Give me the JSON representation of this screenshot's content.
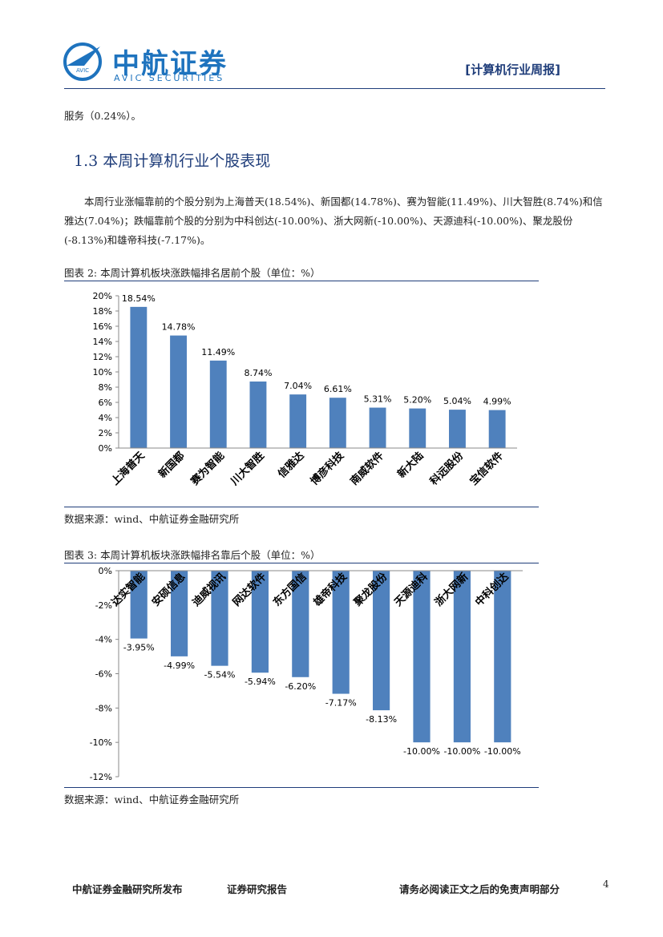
{
  "header": {
    "logo_badge": "AVIC",
    "brand": "中航证券",
    "brand_en": "AVIC SECURITIES",
    "report_type": "[计算机行业周报]"
  },
  "body": {
    "carry_over": "服务（0.24%）。",
    "section_title": "1.3 本周计算机行业个股表现",
    "paragraph": "本周行业涨幅靠前的个股分别为上海普天(18.54%)、新国都(14.78%)、赛为智能(11.49%)、川大智胜(8.74%)和信雅达(7.04%)；跌幅靠前个股的分别为中科创达(-10.00%)、浙大网新(-10.00%)、天源迪科(-10.00%)、聚龙股份(-8.13%)和雄帝科技(-7.17%)。"
  },
  "figures": [
    {
      "caption": "图表 2: 本周计算机板块涨跌幅排名居前个股（单位：%）",
      "source": "数据来源：wind、中航证券金融研究所"
    },
    {
      "caption": "图表 3: 本周计算机板块涨跌幅排名靠后个股（单位：%）",
      "source": "数据来源：wind、中航证券金融研究所"
    }
  ],
  "chart_data": [
    {
      "type": "bar",
      "color": "#4f81bd",
      "label_position": "bottom",
      "categories": [
        "上海普天",
        "新国都",
        "赛为智能",
        "川大智胜",
        "信雅达",
        "博彦科技",
        "南威软件",
        "新大陆",
        "科远股份",
        "宝信软件"
      ],
      "values": [
        18.54,
        14.78,
        11.49,
        8.74,
        7.04,
        6.61,
        5.31,
        5.2,
        5.04,
        4.99
      ],
      "value_labels": [
        "18.54%",
        "14.78%",
        "11.49%",
        "8.74%",
        "7.04%",
        "6.61%",
        "5.31%",
        "5.20%",
        "5.04%",
        "4.99%"
      ],
      "ylim": [
        0,
        20
      ],
      "yticks": [
        {
          "value": 0,
          "label": "0%"
        },
        {
          "value": 2,
          "label": "2%"
        },
        {
          "value": 4,
          "label": "4%"
        },
        {
          "value": 6,
          "label": "6%"
        },
        {
          "value": 8,
          "label": "8%"
        },
        {
          "value": 10,
          "label": "10%"
        },
        {
          "value": 12,
          "label": "12%"
        },
        {
          "value": 14,
          "label": "14%"
        },
        {
          "value": 16,
          "label": "16%"
        },
        {
          "value": 18,
          "label": "18%"
        },
        {
          "value": 20,
          "label": "20%"
        }
      ]
    },
    {
      "type": "bar",
      "color": "#4f81bd",
      "label_position": "top",
      "categories": [
        "达实智能",
        "安硕信息",
        "迪威视讯",
        "网达软件",
        "东方国信",
        "雄帝科技",
        "聚龙股份",
        "天源迪科",
        "浙大网新",
        "中科创达"
      ],
      "values": [
        -3.95,
        -4.99,
        -5.54,
        -5.94,
        -6.2,
        -7.17,
        -8.13,
        -10.0,
        -10.0,
        -10.0
      ],
      "value_labels": [
        "-3.95%",
        "-4.99%",
        "-5.54%",
        "-5.94%",
        "-6.20%",
        "-7.17%",
        "-8.13%",
        "-10.00%",
        "-10.00%",
        "-10.00%"
      ],
      "ylim": [
        -12,
        0
      ],
      "yticks": [
        {
          "value": -12,
          "label": "-12%"
        },
        {
          "value": -10,
          "label": "-10%"
        },
        {
          "value": -8,
          "label": "-8%"
        },
        {
          "value": -6,
          "label": "-6%"
        },
        {
          "value": -4,
          "label": "-4%"
        },
        {
          "value": -2,
          "label": "-2%"
        },
        {
          "value": 0,
          "label": "0%"
        }
      ]
    }
  ],
  "footer": {
    "publisher": "中航证券金融研究所发布",
    "doc_kind": "证券研究报告",
    "disclaimer": "请务必阅读正文之后的免责声明部分",
    "page_number": "4"
  }
}
